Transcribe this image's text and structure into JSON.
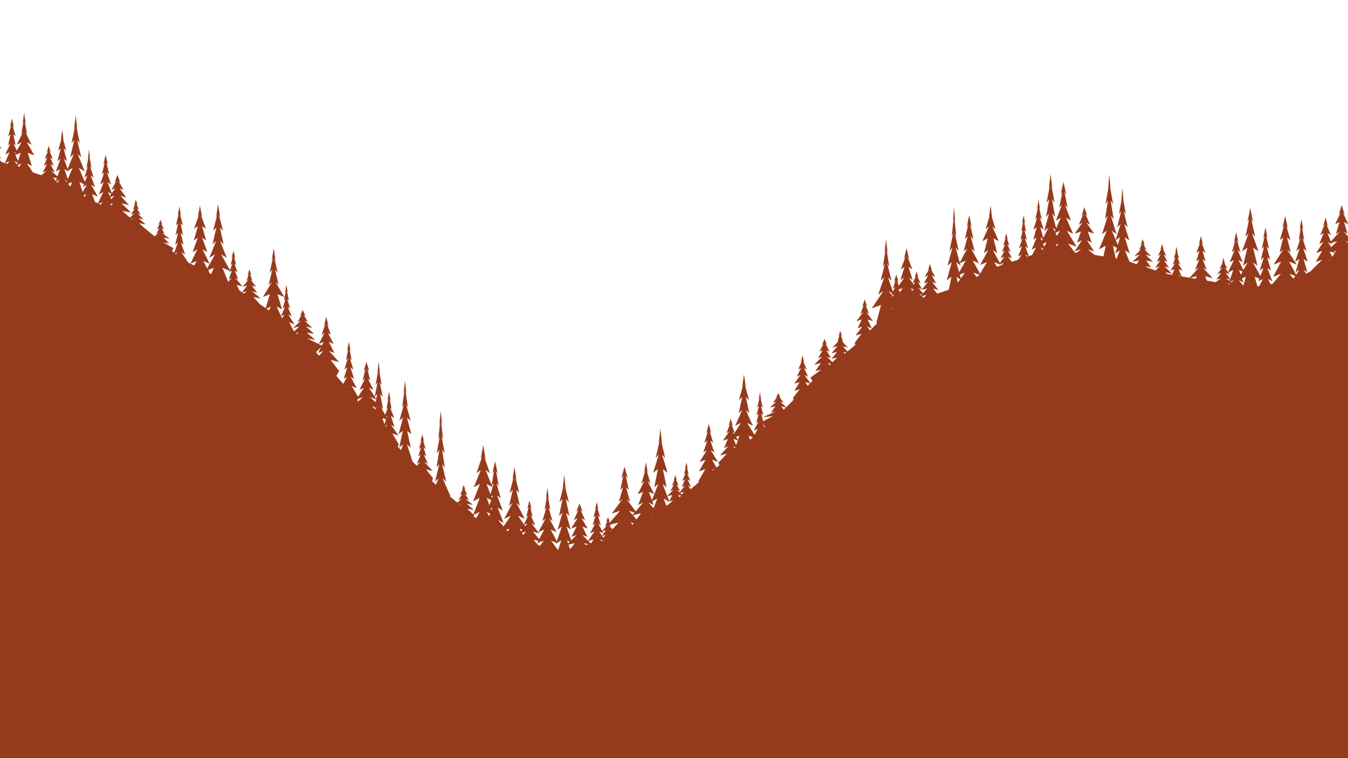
{
  "scene": {
    "subject": "forested-valley-silhouette",
    "colors": {
      "sky": "#ffffff",
      "forest": "#963a1c"
    }
  }
}
